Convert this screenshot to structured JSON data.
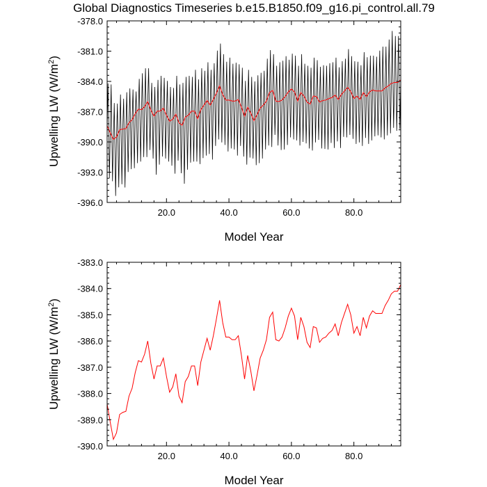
{
  "figure": {
    "title": "Global Diagnostics Timeseries b.e15.B1850.f09_g16.pi_control.all.79"
  },
  "colors": {
    "monthly": "#000000",
    "annual": "#ff0000",
    "frame": "#000000"
  },
  "chart_data": [
    {
      "type": "line",
      "xlabel": "Model Year",
      "ylabel_main": "Upwelling LW (W/m",
      "ylabel_sup": "2",
      "ylabel_close": ")",
      "xlim": [
        1,
        95
      ],
      "ylim": [
        -396.0,
        -378.0
      ],
      "xticks": [
        20,
        40,
        60,
        80
      ],
      "xtick_labels": [
        "20.0",
        "40.0",
        "60.0",
        "80.0"
      ],
      "yticks": [
        -378,
        -381,
        -384,
        -387,
        -390,
        -393,
        -396
      ],
      "ytick_labels": [
        "-378.0",
        "-381.0",
        "-384.0",
        "-387.0",
        "-390.0",
        "-393.0",
        "-396.0"
      ],
      "monthly_cycle": {
        "peak_offset": [
          4.2,
          4.8,
          3.6,
          3.3,
          3.5,
          3.0,
          3.6,
          3.4,
          3.0,
          2.2,
          3.0,
          3.6,
          3.8,
          3.3,
          2.7,
          2.9,
          3.1,
          3.5,
          3.0,
          3.4,
          3.4,
          3.1,
          3.8,
          3.8,
          4.2,
          4.0,
          3.9,
          3.4,
          4.1,
          3.9,
          4.1,
          3.4,
          3.8,
          3.5,
          3.6,
          4.2,
          4.2,
          4.0,
          3.8,
          4.2,
          3.7,
          3.8,
          3.5,
          3.9,
          3.5,
          3.7,
          3.6,
          3.9,
          3.9,
          3.5,
          3.4,
          4.2,
          4.2,
          3.6,
          3.5,
          3.9,
          3.9,
          4.0,
          3.2,
          3.5,
          3.6,
          3.5,
          3.8,
          3.2,
          3.6,
          3.6,
          3.8,
          3.6,
          3.5,
          3.5,
          3.4,
          3.5,
          3.5,
          3.7,
          3.2,
          3.3,
          3.2,
          3.8,
          3.5,
          3.7,
          3.4,
          3.4,
          4.0,
          3.9,
          3.6,
          3.4,
          3.4,
          4.0,
          4.4,
          4.1,
          4.6,
          5.2,
          4.6,
          4.6
        ],
        "trough_offset": [
          5.2,
          4.8,
          5.6,
          5.0,
          5.4,
          5.8,
          4.3,
          4.6,
          4.8,
          4.9,
          5.2,
          4.7,
          5.0,
          4.8,
          4.8,
          5.8,
          5.3,
          4.5,
          5.0,
          4.6,
          4.4,
          5.4,
          4.6,
          5.0,
          5.8,
          5.2,
          4.7,
          5.0,
          5.0,
          4.5,
          4.8,
          5.0,
          5.3,
          5.4,
          4.6,
          4.6,
          5.6,
          5.0,
          5.1,
          4.8,
          4.8,
          5.4,
          4.6,
          4.9,
          4.8,
          5.0,
          4.5,
          4.4,
          4.8,
          5.0,
          4.4,
          4.4,
          5.4,
          4.4,
          4.4,
          4.8,
          4.9,
          4.8,
          4.5,
          5.0,
          4.8,
          4.4,
          4.9,
          4.7,
          4.6,
          4.6,
          4.6,
          4.3,
          4.6,
          4.8,
          4.9,
          4.4,
          5.0,
          4.6,
          4.8,
          4.2,
          4.6,
          4.7,
          4.7,
          4.5,
          4.6,
          4.6,
          4.5,
          4.7,
          4.8,
          4.6,
          4.4,
          4.6,
          4.8,
          4.7,
          4.7,
          4.4,
          4.8,
          4.6
        ]
      }
    },
    {
      "type": "line",
      "xlabel": "Model Year",
      "ylabel_main": "Upwelling LW (W/m",
      "ylabel_sup": "2",
      "ylabel_close": ")",
      "xlim": [
        1,
        95
      ],
      "ylim": [
        -390.0,
        -383.0
      ],
      "xticks": [
        20,
        40,
        60,
        80
      ],
      "xtick_labels": [
        "20.0",
        "40.0",
        "60.0",
        "80.0"
      ],
      "yticks": [
        -383,
        -384,
        -385,
        -386,
        -387,
        -388,
        -389,
        -390
      ],
      "ytick_labels": [
        "-383.0",
        "-384.0",
        "-385.0",
        "-386.0",
        "-387.0",
        "-388.0",
        "-389.0",
        "-390.0"
      ],
      "annual_series": {
        "name": "annual",
        "x": [
          1,
          2,
          3,
          4,
          5,
          6,
          7,
          8,
          9,
          10,
          11,
          12,
          13,
          14,
          15,
          16,
          17,
          18,
          19,
          20,
          21,
          22,
          23,
          24,
          25,
          26,
          27,
          28,
          29,
          30,
          31,
          32,
          33,
          34,
          35,
          36,
          37,
          38,
          39,
          40,
          41,
          42,
          43,
          44,
          45,
          46,
          47,
          48,
          49,
          50,
          51,
          52,
          53,
          54,
          55,
          56,
          57,
          58,
          59,
          60,
          61,
          62,
          63,
          64,
          65,
          66,
          67,
          68,
          69,
          70,
          71,
          72,
          73,
          74,
          75,
          76,
          77,
          78,
          79,
          80,
          81,
          82,
          83,
          84,
          85,
          86,
          87,
          88,
          89,
          90,
          91,
          92,
          93,
          94,
          95
        ],
        "y": [
          -388.4,
          -389.1,
          -389.75,
          -389.5,
          -388.8,
          -388.72,
          -388.68,
          -388.1,
          -387.8,
          -387.2,
          -386.75,
          -386.8,
          -386.5,
          -386.0,
          -386.85,
          -387.45,
          -386.95,
          -386.95,
          -386.65,
          -387.35,
          -387.95,
          -387.75,
          -387.25,
          -388.1,
          -388.35,
          -387.55,
          -387.35,
          -386.95,
          -386.95,
          -387.7,
          -386.8,
          -386.35,
          -385.9,
          -386.35,
          -385.8,
          -385.15,
          -384.45,
          -385.3,
          -385.85,
          -385.85,
          -385.95,
          -385.95,
          -385.8,
          -386.55,
          -387.45,
          -386.55,
          -387.15,
          -387.9,
          -387.3,
          -386.65,
          -386.35,
          -385.95,
          -385.1,
          -384.9,
          -385.95,
          -386.0,
          -385.85,
          -385.5,
          -385.05,
          -384.75,
          -385.05,
          -385.95,
          -385.1,
          -385.45,
          -386.05,
          -386.25,
          -385.45,
          -385.5,
          -386.05,
          -385.9,
          -385.85,
          -385.7,
          -385.6,
          -385.35,
          -385.8,
          -385.3,
          -384.95,
          -384.6,
          -385.0,
          -385.7,
          -385.45,
          -385.8,
          -385.1,
          -385.5,
          -385.05,
          -384.85,
          -384.95,
          -384.95,
          -384.95,
          -384.65,
          -384.45,
          -384.2,
          -384.1,
          -384.1,
          -383.85
        ]
      }
    }
  ]
}
